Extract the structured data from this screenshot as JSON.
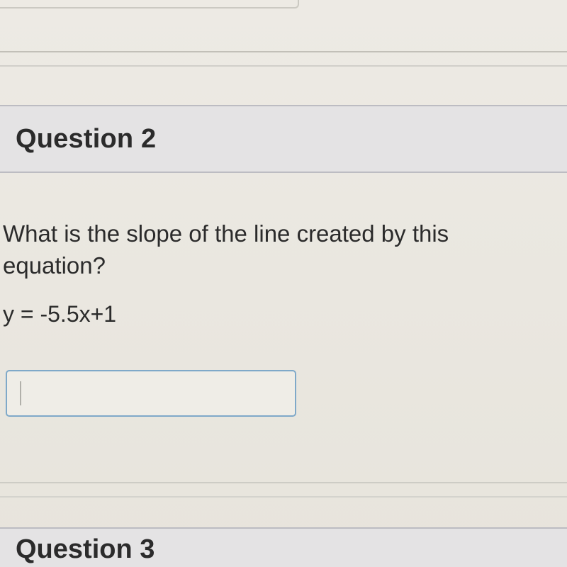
{
  "colors": {
    "page_bg": "#ece9e2",
    "header_band_bg": "#e4e3e4",
    "header_band_border": "#bcbcc2",
    "rule_color": "#c2c0b8",
    "text_color": "#2b2b2b",
    "input_border": "#7fa9c9",
    "input_bg": "#efede7"
  },
  "typography": {
    "heading_fontsize_pt": 28,
    "body_fontsize_pt": 24,
    "font_family": "Helvetica Neue / Arial"
  },
  "question2": {
    "heading": "Question 2",
    "prompt": "What is the slope of the line created by this equation?",
    "equation": "y = -5.5x+1",
    "answer_value": "",
    "answer_placeholder": ""
  },
  "question3": {
    "heading": "Question 3"
  }
}
